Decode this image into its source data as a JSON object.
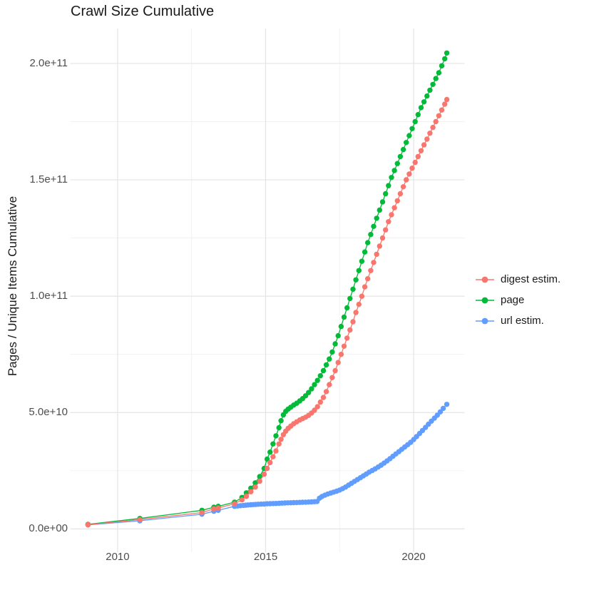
{
  "title": "Crawl Size Cumulative",
  "style": {
    "background": "#FFFFFF",
    "grid_major": "#E4E4E4",
    "grid_minor": "#F1F1F1",
    "tick_text_color": "#4D4D4D",
    "text_color": "#1A1A1A"
  },
  "chart_data": {
    "type": "line",
    "markers": true,
    "title": "Crawl Size Cumulative",
    "xlabel": "",
    "ylabel": "Pages / Unique Items Cumulative",
    "legend_position": "right",
    "grid": true,
    "xlim": [
      2008.4,
      2021.72
    ],
    "ylim": [
      -10000000000.0,
      215000000000.0
    ],
    "x_ticks": [
      {
        "value": 2010,
        "label": "2010"
      },
      {
        "value": 2015,
        "label": "2015"
      },
      {
        "value": 2020,
        "label": "2020"
      }
    ],
    "y_ticks": [
      {
        "value": 0,
        "label": "0.0e+00"
      },
      {
        "value": 50000000000.0,
        "label": "5.0e+10"
      },
      {
        "value": 100000000000.0,
        "label": "1.0e+11"
      },
      {
        "value": 150000000000.0,
        "label": "1.5e+11"
      },
      {
        "value": 200000000000.0,
        "label": "2.0e+11"
      }
    ],
    "x_minor": [
      2012.5,
      2017.5
    ],
    "y_minor": [
      25000000000.0,
      75000000000.0,
      125000000000.0,
      175000000000.0
    ],
    "series": [
      {
        "name": "digest estim.",
        "color": "#F8766D",
        "points": [
          [
            2009.0,
            1800000000.0
          ],
          [
            2010.75,
            4000000000.0
          ],
          [
            2012.85,
            7000000000.0
          ],
          [
            2013.25,
            8600000000.0
          ],
          [
            2013.4,
            9000000000.0
          ],
          [
            2013.95,
            10800000000.0
          ],
          [
            2014.2,
            12500000000.0
          ],
          [
            2014.35,
            14000000000.0
          ],
          [
            2014.5,
            16000000000.0
          ],
          [
            2014.65,
            18000000000.0
          ],
          [
            2014.8,
            20500000000.0
          ],
          [
            2014.95,
            23500000000.0
          ],
          [
            2015.05,
            26000000000.0
          ],
          [
            2015.15,
            28500000000.0
          ],
          [
            2015.25,
            31000000000.0
          ],
          [
            2015.35,
            33500000000.0
          ],
          [
            2015.45,
            36500000000.0
          ],
          [
            2015.52,
            38500000000.0
          ],
          [
            2015.6,
            40500000000.0
          ],
          [
            2015.68,
            42000000000.0
          ],
          [
            2015.76,
            43200000000.0
          ],
          [
            2015.85,
            44200000000.0
          ],
          [
            2015.95,
            45200000000.0
          ],
          [
            2016.05,
            46000000000.0
          ],
          [
            2016.15,
            46800000000.0
          ],
          [
            2016.25,
            47400000000.0
          ],
          [
            2016.35,
            48000000000.0
          ],
          [
            2016.45,
            48800000000.0
          ],
          [
            2016.55,
            49800000000.0
          ],
          [
            2016.65,
            51000000000.0
          ],
          [
            2016.75,
            52500000000.0
          ],
          [
            2016.85,
            54500000000.0
          ],
          [
            2016.95,
            56500000000.0
          ],
          [
            2017.05,
            59000000000.0
          ],
          [
            2017.15,
            62000000000.0
          ],
          [
            2017.25,
            65000000000.0
          ],
          [
            2017.35,
            68000000000.0
          ],
          [
            2017.45,
            71500000000.0
          ],
          [
            2017.55,
            75000000000.0
          ],
          [
            2017.65,
            78500000000.0
          ],
          [
            2017.75,
            82000000000.0
          ],
          [
            2017.85,
            85500000000.0
          ],
          [
            2017.95,
            89000000000.0
          ],
          [
            2018.05,
            93000000000.0
          ],
          [
            2018.15,
            96500000000.0
          ],
          [
            2018.25,
            100000000000.0
          ],
          [
            2018.35,
            104000000000.0
          ],
          [
            2018.45,
            107500000000.0
          ],
          [
            2018.55,
            111000000000.0
          ],
          [
            2018.65,
            114500000000.0
          ],
          [
            2018.75,
            118000000000.0
          ],
          [
            2018.85,
            121500000000.0
          ],
          [
            2018.95,
            125000000000.0
          ],
          [
            2019.05,
            128500000000.0
          ],
          [
            2019.15,
            132000000000.0
          ],
          [
            2019.25,
            135000000000.0
          ],
          [
            2019.35,
            138000000000.0
          ],
          [
            2019.45,
            141000000000.0
          ],
          [
            2019.55,
            144000000000.0
          ],
          [
            2019.65,
            147000000000.0
          ],
          [
            2019.75,
            150000000000.0
          ],
          [
            2019.85,
            152500000000.0
          ],
          [
            2019.95,
            155000000000.0
          ],
          [
            2020.05,
            157500000000.0
          ],
          [
            2020.15,
            160000000000.0
          ],
          [
            2020.25,
            162500000000.0
          ],
          [
            2020.35,
            165000000000.0
          ],
          [
            2020.45,
            167500000000.0
          ],
          [
            2020.55,
            170000000000.0
          ],
          [
            2020.65,
            172500000000.0
          ],
          [
            2020.75,
            175000000000.0
          ],
          [
            2020.85,
            177500000000.0
          ],
          [
            2020.95,
            180000000000.0
          ],
          [
            2021.05,
            182500000000.0
          ],
          [
            2021.12,
            184500000000.0
          ]
        ]
      },
      {
        "name": "page",
        "color": "#00BA38",
        "points": [
          [
            2009.0,
            2000000000.0
          ],
          [
            2010.75,
            4500000000.0
          ],
          [
            2012.85,
            8000000000.0
          ],
          [
            2013.25,
            9300000000.0
          ],
          [
            2013.4,
            9700000000.0
          ],
          [
            2013.95,
            11500000000.0
          ],
          [
            2014.2,
            13500000000.0
          ],
          [
            2014.35,
            15500000000.0
          ],
          [
            2014.5,
            17500000000.0
          ],
          [
            2014.65,
            19800000000.0
          ],
          [
            2014.8,
            22500000000.0
          ],
          [
            2014.95,
            26000000000.0
          ],
          [
            2015.05,
            30000000000.0
          ],
          [
            2015.15,
            33000000000.0
          ],
          [
            2015.25,
            36500000000.0
          ],
          [
            2015.35,
            40000000000.0
          ],
          [
            2015.45,
            43500000000.0
          ],
          [
            2015.52,
            46500000000.0
          ],
          [
            2015.6,
            49000000000.0
          ],
          [
            2015.68,
            50500000000.0
          ],
          [
            2015.76,
            51500000000.0
          ],
          [
            2015.85,
            52300000000.0
          ],
          [
            2015.95,
            53200000000.0
          ],
          [
            2016.05,
            54000000000.0
          ],
          [
            2016.15,
            55000000000.0
          ],
          [
            2016.25,
            56000000000.0
          ],
          [
            2016.35,
            57200000000.0
          ],
          [
            2016.45,
            58600000000.0
          ],
          [
            2016.55,
            60200000000.0
          ],
          [
            2016.65,
            62000000000.0
          ],
          [
            2016.75,
            63800000000.0
          ],
          [
            2016.85,
            65800000000.0
          ],
          [
            2016.95,
            68000000000.0
          ],
          [
            2017.05,
            70500000000.0
          ],
          [
            2017.15,
            73000000000.0
          ],
          [
            2017.25,
            76000000000.0
          ],
          [
            2017.35,
            79500000000.0
          ],
          [
            2017.45,
            83000000000.0
          ],
          [
            2017.55,
            87000000000.0
          ],
          [
            2017.65,
            91000000000.0
          ],
          [
            2017.75,
            95000000000.0
          ],
          [
            2017.85,
            99000000000.0
          ],
          [
            2017.95,
            103000000000.0
          ],
          [
            2018.05,
            107000000000.0
          ],
          [
            2018.15,
            111000000000.0
          ],
          [
            2018.25,
            115000000000.0
          ],
          [
            2018.35,
            119000000000.0
          ],
          [
            2018.45,
            123000000000.0
          ],
          [
            2018.55,
            126500000000.0
          ],
          [
            2018.65,
            130000000000.0
          ],
          [
            2018.75,
            133500000000.0
          ],
          [
            2018.85,
            137000000000.0
          ],
          [
            2018.95,
            140500000000.0
          ],
          [
            2019.05,
            144000000000.0
          ],
          [
            2019.15,
            147500000000.0
          ],
          [
            2019.25,
            151000000000.0
          ],
          [
            2019.35,
            154000000000.0
          ],
          [
            2019.45,
            157000000000.0
          ],
          [
            2019.55,
            160000000000.0
          ],
          [
            2019.65,
            163000000000.0
          ],
          [
            2019.75,
            166000000000.0
          ],
          [
            2019.85,
            169000000000.0
          ],
          [
            2019.95,
            172000000000.0
          ],
          [
            2020.05,
            175000000000.0
          ],
          [
            2020.15,
            178000000000.0
          ],
          [
            2020.25,
            181000000000.0
          ],
          [
            2020.35,
            183500000000.0
          ],
          [
            2020.45,
            186000000000.0
          ],
          [
            2020.55,
            188500000000.0
          ],
          [
            2020.65,
            191000000000.0
          ],
          [
            2020.75,
            193500000000.0
          ],
          [
            2020.85,
            196000000000.0
          ],
          [
            2020.95,
            199000000000.0
          ],
          [
            2021.05,
            202000000000.0
          ],
          [
            2021.12,
            204500000000.0
          ]
        ]
      },
      {
        "name": "url estim.",
        "color": "#619CFF",
        "points": [
          [
            2009.0,
            1700000000.0
          ],
          [
            2010.75,
            3500000000.0
          ],
          [
            2012.85,
            6300000000.0
          ],
          [
            2013.25,
            7600000000.0
          ],
          [
            2013.4,
            8000000000.0
          ],
          [
            2013.95,
            9700000000.0
          ],
          [
            2014.05,
            9850000000.0
          ],
          [
            2014.15,
            10000000000.0
          ],
          [
            2014.25,
            10100000000.0
          ],
          [
            2014.33,
            10200000000.0
          ],
          [
            2014.41,
            10300000000.0
          ],
          [
            2014.5,
            10400000000.0
          ],
          [
            2014.58,
            10450000000.0
          ],
          [
            2014.66,
            10500000000.0
          ],
          [
            2014.75,
            10600000000.0
          ],
          [
            2014.85,
            10650000000.0
          ],
          [
            2014.95,
            10700000000.0
          ],
          [
            2015.05,
            10800000000.0
          ],
          [
            2015.15,
            10850000000.0
          ],
          [
            2015.25,
            10900000000.0
          ],
          [
            2015.35,
            10950000000.0
          ],
          [
            2015.45,
            11000000000.0
          ],
          [
            2015.55,
            11100000000.0
          ],
          [
            2015.65,
            11150000000.0
          ],
          [
            2015.75,
            11200000000.0
          ],
          [
            2015.85,
            11250000000.0
          ],
          [
            2015.95,
            11300000000.0
          ],
          [
            2016.05,
            11350000000.0
          ],
          [
            2016.15,
            11400000000.0
          ],
          [
            2016.25,
            11450000000.0
          ],
          [
            2016.35,
            11500000000.0
          ],
          [
            2016.45,
            11550000000.0
          ],
          [
            2016.55,
            11600000000.0
          ],
          [
            2016.65,
            11700000000.0
          ],
          [
            2016.74,
            11800000000.0
          ],
          [
            2016.82,
            13200000000.0
          ],
          [
            2016.9,
            13900000000.0
          ],
          [
            2017.0,
            14500000000.0
          ],
          [
            2017.1,
            15000000000.0
          ],
          [
            2017.2,
            15400000000.0
          ],
          [
            2017.3,
            15800000000.0
          ],
          [
            2017.4,
            16200000000.0
          ],
          [
            2017.5,
            16700000000.0
          ],
          [
            2017.6,
            17300000000.0
          ],
          [
            2017.7,
            18000000000.0
          ],
          [
            2017.8,
            18800000000.0
          ],
          [
            2017.9,
            19600000000.0
          ],
          [
            2018.0,
            20400000000.0
          ],
          [
            2018.1,
            21200000000.0
          ],
          [
            2018.2,
            22000000000.0
          ],
          [
            2018.3,
            22800000000.0
          ],
          [
            2018.4,
            23600000000.0
          ],
          [
            2018.5,
            24400000000.0
          ],
          [
            2018.6,
            25100000000.0
          ],
          [
            2018.7,
            25800000000.0
          ],
          [
            2018.8,
            26600000000.0
          ],
          [
            2018.9,
            27400000000.0
          ],
          [
            2019.0,
            28300000000.0
          ],
          [
            2019.1,
            29200000000.0
          ],
          [
            2019.2,
            30200000000.0
          ],
          [
            2019.3,
            31200000000.0
          ],
          [
            2019.4,
            32200000000.0
          ],
          [
            2019.5,
            33200000000.0
          ],
          [
            2019.6,
            34200000000.0
          ],
          [
            2019.7,
            35200000000.0
          ],
          [
            2019.8,
            36200000000.0
          ],
          [
            2019.9,
            37200000000.0
          ],
          [
            2020.0,
            38400000000.0
          ],
          [
            2020.1,
            39700000000.0
          ],
          [
            2020.2,
            41000000000.0
          ],
          [
            2020.3,
            42300000000.0
          ],
          [
            2020.4,
            43600000000.0
          ],
          [
            2020.5,
            45000000000.0
          ],
          [
            2020.6,
            46300000000.0
          ],
          [
            2020.7,
            47600000000.0
          ],
          [
            2020.8,
            48900000000.0
          ],
          [
            2020.9,
            50300000000.0
          ],
          [
            2021.0,
            51800000000.0
          ],
          [
            2021.12,
            53500000000.0
          ]
        ]
      }
    ]
  }
}
